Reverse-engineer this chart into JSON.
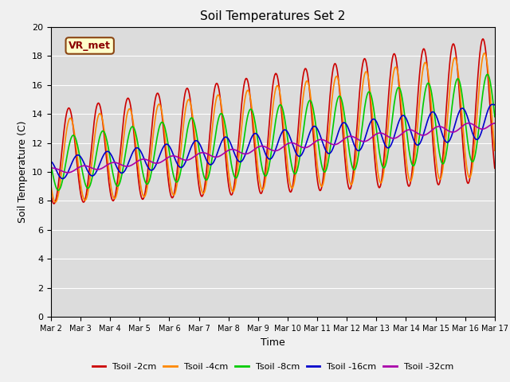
{
  "title": "Soil Temperatures Set 2",
  "xlabel": "Time",
  "ylabel": "Soil Temperature (C)",
  "xlim": [
    0,
    15
  ],
  "ylim": [
    0,
    20
  ],
  "yticks": [
    0,
    2,
    4,
    6,
    8,
    10,
    12,
    14,
    16,
    18,
    20
  ],
  "xtick_labels": [
    "Mar 2",
    "Mar 3",
    "Mar 4",
    "Mar 5",
    "Mar 6",
    "Mar 7",
    "Mar 8",
    "Mar 9",
    "Mar 10",
    "Mar 11",
    "Mar 12",
    "Mar 13",
    "Mar 14",
    "Mar 15",
    "Mar 16",
    "Mar 17"
  ],
  "legend_labels": [
    "Tsoil -2cm",
    "Tsoil -4cm",
    "Tsoil -8cm",
    "Tsoil -16cm",
    "Tsoil -32cm"
  ],
  "annotation_text": "VR_met",
  "background_color": "#dcdcdc",
  "line_colors": [
    "#cc0000",
    "#ff8800",
    "#00cc00",
    "#0000cc",
    "#aa00aa"
  ],
  "line_widths": [
    1.2,
    1.2,
    1.2,
    1.2,
    1.2
  ],
  "fig_facecolor": "#f0f0f0"
}
